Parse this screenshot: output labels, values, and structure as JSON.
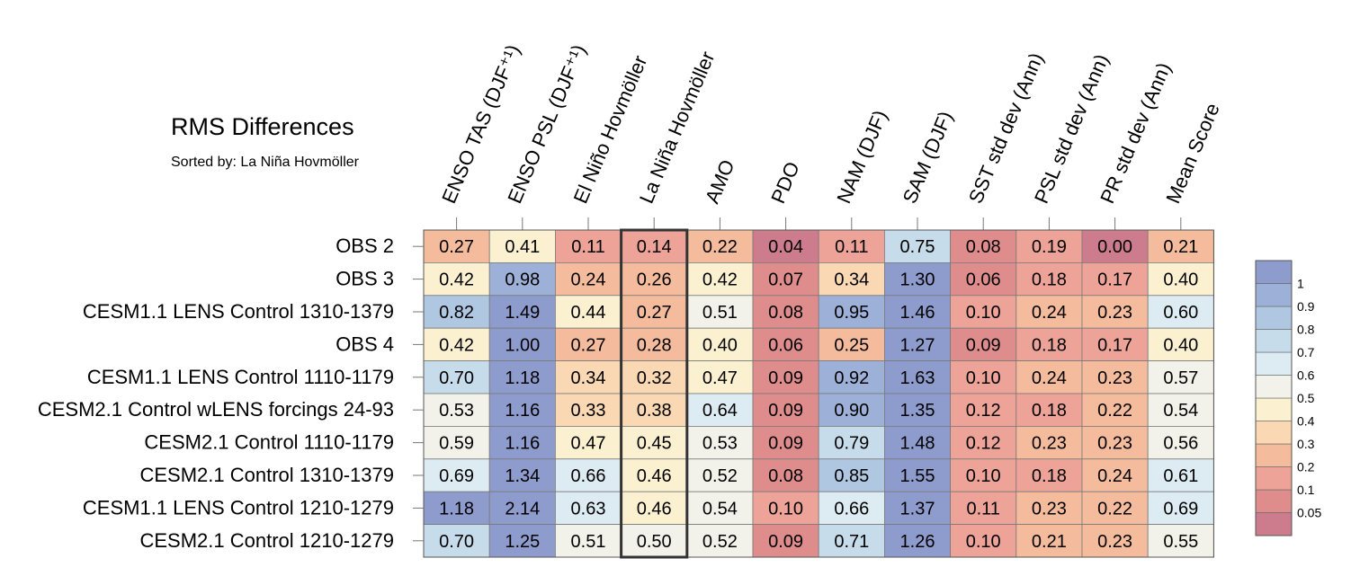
{
  "chart_data": {
    "type": "heatmap",
    "title": "RMS Differences",
    "subtitle": "Sorted by: La Niña Hovmöller",
    "sorted_by_column": "La Niña Hovmöller",
    "columns": [
      "ENSO TAS (DJF⁺¹)",
      "ENSO PSL (DJF⁺¹)",
      "El Niño Hovmöller",
      "La Niña Hovmöller",
      "AMO",
      "PDO",
      "NAM (DJF)",
      "SAM (DJF)",
      "SST std dev (Ann)",
      "PSL std dev (Ann)",
      "PR std dev (Ann)",
      "Mean Score"
    ],
    "rows": [
      {
        "label": "OBS 2",
        "values": [
          "0.27",
          "0.41",
          "0.11",
          "0.14",
          "0.22",
          "0.04",
          "0.11",
          "0.75",
          "0.08",
          "0.19",
          "0.00",
          "0.21"
        ]
      },
      {
        "label": "OBS 3",
        "values": [
          "0.42",
          "0.98",
          "0.24",
          "0.26",
          "0.42",
          "0.07",
          "0.34",
          "1.30",
          "0.06",
          "0.18",
          "0.17",
          "0.40"
        ]
      },
      {
        "label": "CESM1.1 LENS Control 1310-1379",
        "values": [
          "0.82",
          "1.49",
          "0.44",
          "0.27",
          "0.51",
          "0.08",
          "0.95",
          "1.46",
          "0.10",
          "0.24",
          "0.23",
          "0.60"
        ]
      },
      {
        "label": "OBS 4",
        "values": [
          "0.42",
          "1.00",
          "0.27",
          "0.28",
          "0.40",
          "0.06",
          "0.25",
          "1.27",
          "0.09",
          "0.18",
          "0.17",
          "0.40"
        ]
      },
      {
        "label": "CESM1.1 LENS Control 1110-1179",
        "values": [
          "0.70",
          "1.18",
          "0.34",
          "0.32",
          "0.47",
          "0.09",
          "0.92",
          "1.63",
          "0.10",
          "0.24",
          "0.23",
          "0.57"
        ]
      },
      {
        "label": "CESM2.1 Control wLENS forcings 24-93",
        "values": [
          "0.53",
          "1.16",
          "0.33",
          "0.38",
          "0.64",
          "0.09",
          "0.90",
          "1.35",
          "0.12",
          "0.18",
          "0.22",
          "0.54"
        ]
      },
      {
        "label": "CESM2.1 Control 1110-1179",
        "values": [
          "0.59",
          "1.16",
          "0.47",
          "0.45",
          "0.53",
          "0.09",
          "0.79",
          "1.48",
          "0.12",
          "0.23",
          "0.23",
          "0.56"
        ]
      },
      {
        "label": "CESM2.1 Control 1310-1379",
        "values": [
          "0.69",
          "1.34",
          "0.66",
          "0.46",
          "0.52",
          "0.08",
          "0.85",
          "1.55",
          "0.10",
          "0.18",
          "0.24",
          "0.61"
        ]
      },
      {
        "label": "CESM1.1 LENS Control 1210-1279",
        "values": [
          "1.18",
          "2.14",
          "0.63",
          "0.46",
          "0.54",
          "0.10",
          "0.66",
          "1.37",
          "0.11",
          "0.23",
          "0.22",
          "0.69"
        ]
      },
      {
        "label": "CESM2.1 Control 1210-1279",
        "values": [
          "0.70",
          "1.25",
          "0.51",
          "0.50",
          "0.52",
          "0.09",
          "0.71",
          "1.26",
          "0.10",
          "0.21",
          "0.23",
          "0.55"
        ]
      }
    ],
    "colorbar": {
      "levels": [
        0.05,
        0.1,
        0.2,
        0.3,
        0.4,
        0.5,
        0.6,
        0.7,
        0.8,
        0.9,
        1
      ],
      "labels": [
        "0.05",
        "0.1",
        "0.2",
        "0.3",
        "0.4",
        "0.5",
        "0.6",
        "0.7",
        "0.8",
        "0.9",
        "1"
      ],
      "colors": [
        "#cc7c8c",
        "#de8c8c",
        "#eda397",
        "#f4bc9c",
        "#f9d8b3",
        "#fbf1d1",
        "#f2f2ea",
        "#ddecf3",
        "#c6dcea",
        "#b0c7e2",
        "#9db0d7",
        "#8e9bcd"
      ]
    }
  }
}
